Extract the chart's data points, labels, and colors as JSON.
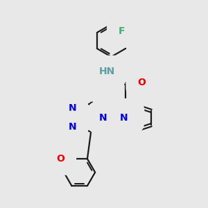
{
  "bg_color": "#e8e8e8",
  "bond_color": "#1a1a1a",
  "bond_width": 1.6,
  "colors": {
    "F": "#3cb371",
    "N": "#0000ee",
    "O": "#ee0000",
    "S": "#cccc00",
    "NH": "#5f9ea0",
    "C": "#1a1a1a"
  },
  "layout": {
    "xlim": [
      0,
      10
    ],
    "ylim": [
      0,
      10
    ]
  }
}
